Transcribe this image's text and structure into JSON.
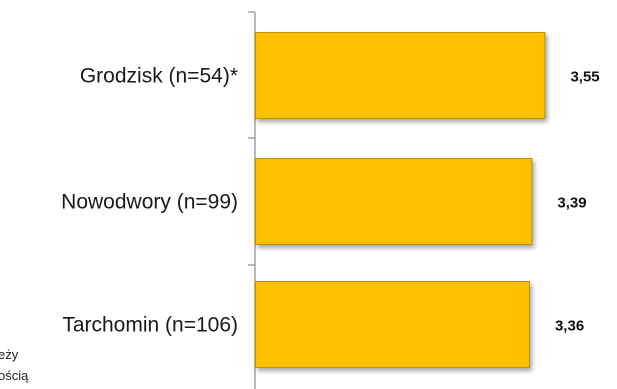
{
  "chart_data": {
    "type": "bar",
    "orientation": "horizontal",
    "categories": [
      "Grodzisk  (n=54)*",
      "Nowodwory  (n=99)",
      "Tarchomin  (n=106)"
    ],
    "values": [
      3.55,
      3.39,
      3.36
    ],
    "value_labels": [
      "3,55",
      "3,39",
      "3,36"
    ],
    "title": "",
    "xlabel": "",
    "ylabel": "",
    "xlim": [
      0,
      3.9
    ],
    "grid": false,
    "legend": "none",
    "bar_color": "#FFC000",
    "bar_edge_color": "#BF9000"
  },
  "footnote": {
    "line1": "eży",
    "line2": "ością"
  }
}
